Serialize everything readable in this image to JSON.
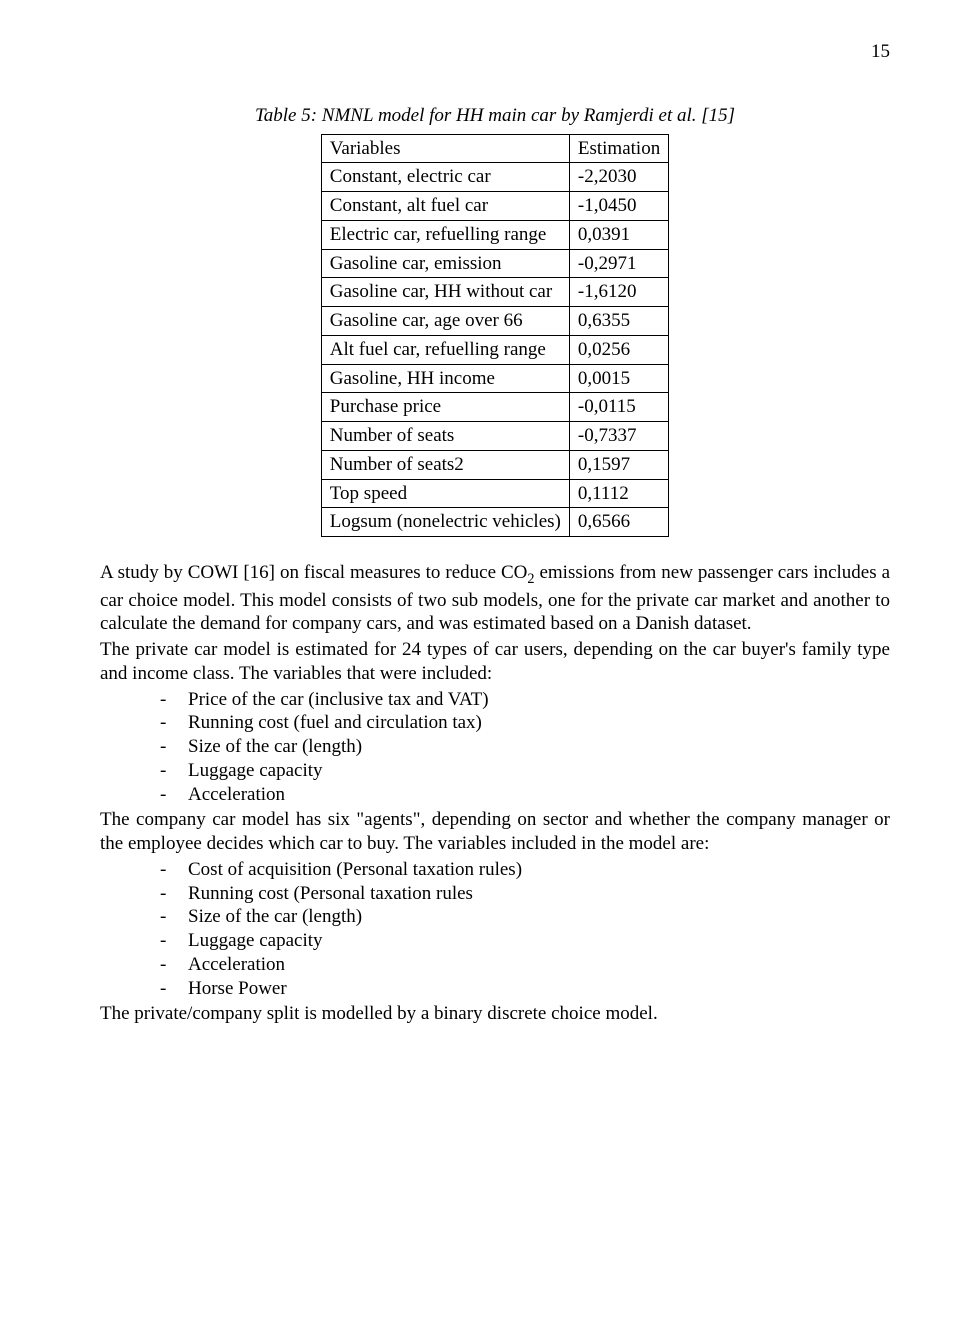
{
  "page_number": "15",
  "table_caption": "Table 5: NMNL model for HH main car by Ramjerdi et al. [15]",
  "table": {
    "header": {
      "c1": "Variables",
      "c2": "Estimation"
    },
    "rows": [
      {
        "c1": "Constant, electric car",
        "c2": "-2,2030"
      },
      {
        "c1": "Constant, alt fuel car",
        "c2": "-1,0450"
      },
      {
        "c1": "Electric car, refuelling range",
        "c2": "0,0391"
      },
      {
        "c1": "Gasoline car, emission",
        "c2": "-0,2971"
      },
      {
        "c1": "Gasoline car, HH without car",
        "c2": "-1,6120"
      },
      {
        "c1": "Gasoline car, age over 66",
        "c2": "0,6355"
      },
      {
        "c1": "Alt fuel car, refuelling range",
        "c2": "0,0256"
      },
      {
        "c1": "Gasoline, HH income",
        "c2": "0,0015"
      },
      {
        "c1": "Purchase price",
        "c2": "-0,0115"
      },
      {
        "c1": "Number of seats",
        "c2": "-0,7337"
      },
      {
        "c1": "Number of seats2",
        "c2": "0,1597"
      },
      {
        "c1": "Top speed",
        "c2": "0,1112"
      },
      {
        "c1": "Logsum (nonelectric vehicles)",
        "c2": "0,6566"
      }
    ]
  },
  "para1_a": "A study by COWI [16] on fiscal measures to reduce CO",
  "para1_sub": "2",
  "para1_b": " emissions from new passenger cars includes a car choice model. This model consists of two sub models, one for the private car market and another to calculate the demand for company cars, and was estimated based on a Danish dataset.",
  "para2": "The private car model is estimated for 24 types of car users, depending on the car buyer's family type and income class. The variables that were included:",
  "list1": [
    "Price of the car (inclusive tax and VAT)",
    "Running cost (fuel and circulation tax)",
    "Size of the car (length)",
    "Luggage capacity",
    "Acceleration"
  ],
  "para3": "The company car model has six \"agents\", depending on sector and whether the company manager or the employee decides which car to buy. The variables included in the model are:",
  "list2": [
    "Cost of acquisition (Personal taxation rules)",
    "Running cost (Personal taxation rules",
    "Size of the car (length)",
    "Luggage capacity",
    "Acceleration",
    "Horse Power"
  ],
  "para4": "The private/company split is modelled by a binary discrete choice model."
}
